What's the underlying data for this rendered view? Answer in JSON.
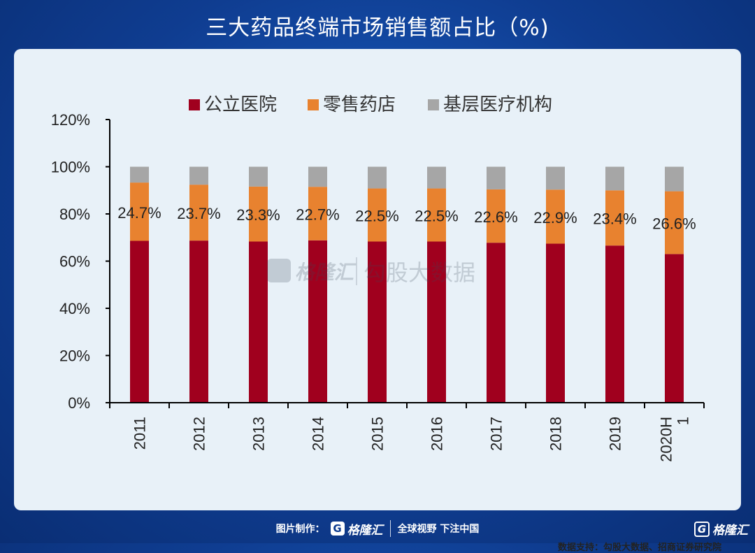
{
  "title": "三大药品终端市场销售额占比（%)",
  "source": "数据支持：勾股大数据、招商证券研究院",
  "footer": {
    "credit": "图片制作：",
    "brand": "格隆汇",
    "slogan": "全球视野 下注中国"
  },
  "watermark": {
    "brand": "格隆汇",
    "product": "勾股大数据"
  },
  "corner_brand": "格隆汇",
  "colors": {
    "hospital": "#a0001e",
    "pharmacy": "#e8822f",
    "grassroots": "#a6a6a6"
  },
  "chart_data": {
    "type": "bar",
    "stacked": true,
    "categories": [
      "2011",
      "2012",
      "2013",
      "2014",
      "2015",
      "2016",
      "2017",
      "2018",
      "2019",
      "2020H1"
    ],
    "category_labels": [
      [
        "2011"
      ],
      [
        "2012"
      ],
      [
        "2013"
      ],
      [
        "2014"
      ],
      [
        "2015"
      ],
      [
        "2016"
      ],
      [
        "2017"
      ],
      [
        "2018"
      ],
      [
        "2019"
      ],
      [
        "2020H",
        "1"
      ]
    ],
    "series": [
      {
        "name": "公立医院",
        "values": [
          68.6,
          68.7,
          68.3,
          68.8,
          68.3,
          68.3,
          67.8,
          67.4,
          66.6,
          63.0
        ]
      },
      {
        "name": "零售药店",
        "values": [
          24.7,
          23.7,
          23.3,
          22.7,
          22.5,
          22.5,
          22.6,
          22.9,
          23.4,
          26.6
        ]
      },
      {
        "name": "基层医疗机构",
        "values": [
          6.7,
          7.6,
          8.4,
          8.5,
          9.2,
          9.2,
          9.6,
          9.7,
          10.0,
          10.4
        ]
      }
    ],
    "data_labels": [
      "24.7%",
      "23.7%",
      "23.3%",
      "22.7%",
      "22.5%",
      "22.5%",
      "22.6%",
      "22.9%",
      "23.4%",
      "26.6%"
    ],
    "yticks": [
      "0%",
      "20%",
      "40%",
      "60%",
      "80%",
      "100%",
      "120%"
    ],
    "ylim": [
      0,
      120
    ],
    "legend_position": "top",
    "grid": false
  }
}
